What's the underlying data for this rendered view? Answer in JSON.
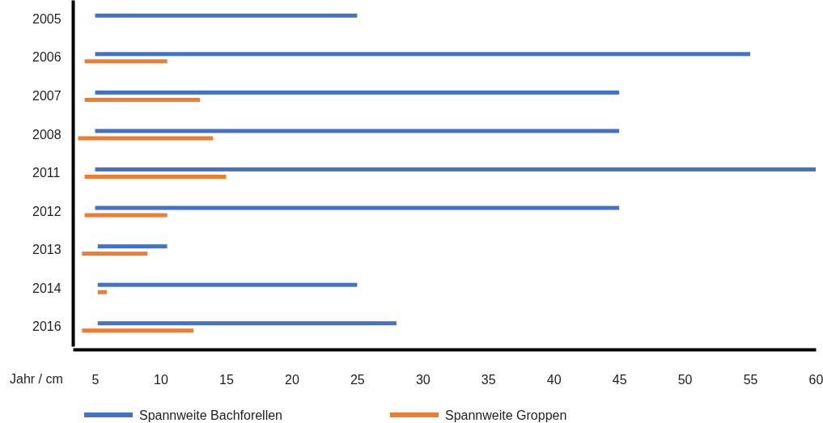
{
  "chart_data": {
    "type": "bar",
    "orientation": "horizontal",
    "xlabel": "Jahr / cm",
    "categories": [
      "2005",
      "2006",
      "2007",
      "2008",
      "2011",
      "2012",
      "2013",
      "2014",
      "2016"
    ],
    "series": [
      {
        "name": "Spannweite Bachforellen",
        "color": "#4472c4",
        "base": [
          5,
          5,
          5,
          5,
          5,
          5,
          5.2,
          5.2,
          5.2
        ],
        "values": [
          20,
          50,
          40,
          40,
          55,
          40,
          5.3,
          19.8,
          22.8
        ]
      },
      {
        "name": "Spannweite Groppen",
        "color": "#ed7d31",
        "base": [
          null,
          4.2,
          4.2,
          3.7,
          4.2,
          4.2,
          4,
          5.2,
          4
        ],
        "values": [
          null,
          6.3,
          8.8,
          10.3,
          10.8,
          6.3,
          5,
          0.7,
          8.5
        ]
      }
    ],
    "xlim": [
      3.3,
      60
    ],
    "xticks": [
      5,
      10,
      15,
      20,
      25,
      30,
      35,
      40,
      45,
      50,
      55,
      60
    ],
    "grid": false,
    "legend": "bottom"
  }
}
